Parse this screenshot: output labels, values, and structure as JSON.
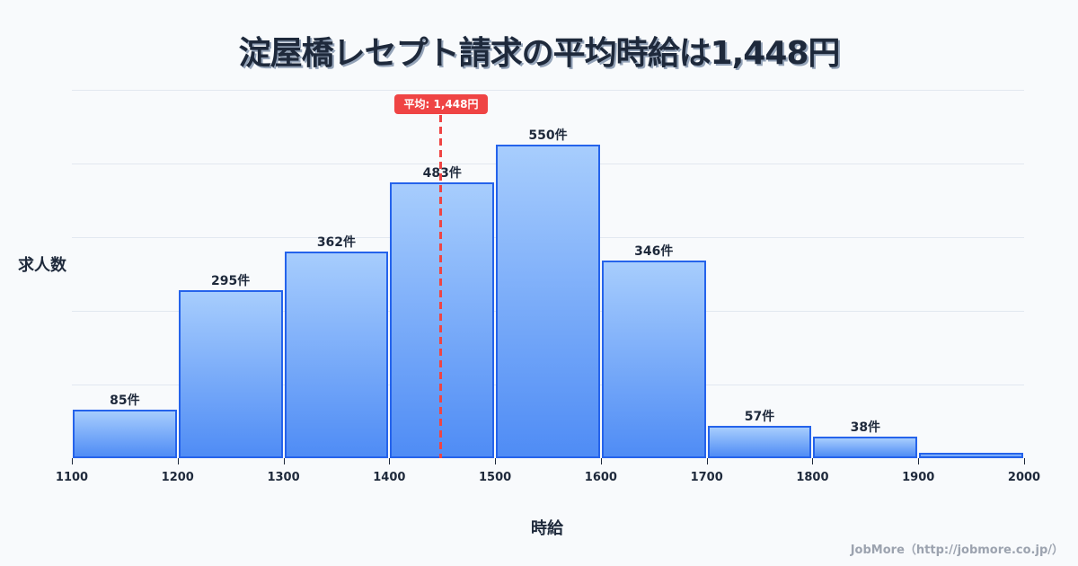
{
  "title": "淀屋橋レセプト請求の平均時給は1,448円",
  "ylabel": "求人数",
  "xlabel": "時給",
  "credit": "JobMore（http://jobmore.co.jp/）",
  "mean_badge": "平均: 1,448円",
  "colors": {
    "bar_border": "#2563eb",
    "bar_top": "#a7cdfd",
    "bar_bottom": "#4f8cf5",
    "mean_line": "#ef4444",
    "text": "#1e293b",
    "grid": "#e2e8f0",
    "background": "#f8fafc"
  },
  "chart_data": {
    "type": "bar",
    "title": "淀屋橋レセプト請求の平均時給は1,448円",
    "xlabel": "時給",
    "ylabel": "求人数",
    "bins": [
      {
        "from": 1100,
        "to": 1200,
        "value": 85,
        "label": "85件"
      },
      {
        "from": 1200,
        "to": 1300,
        "value": 295,
        "label": "295件"
      },
      {
        "from": 1300,
        "to": 1400,
        "value": 362,
        "label": "362件"
      },
      {
        "from": 1400,
        "to": 1500,
        "value": 483,
        "label": "483件"
      },
      {
        "from": 1500,
        "to": 1600,
        "value": 550,
        "label": "550件"
      },
      {
        "from": 1600,
        "to": 1700,
        "value": 346,
        "label": "346件"
      },
      {
        "from": 1700,
        "to": 1800,
        "value": 57,
        "label": "57件"
      },
      {
        "from": 1800,
        "to": 1900,
        "value": 38,
        "label": "38件"
      },
      {
        "from": 1900,
        "to": 2000,
        "value": 10,
        "label": ""
      }
    ],
    "categories": [
      "1100-1200",
      "1200-1300",
      "1300-1400",
      "1400-1500",
      "1500-1600",
      "1600-1700",
      "1700-1800",
      "1800-1900",
      "1900-2000"
    ],
    "values": [
      85,
      295,
      362,
      483,
      550,
      346,
      57,
      38,
      10
    ],
    "x_ticks": [
      "1100",
      "1200",
      "1300",
      "1400",
      "1500",
      "1600",
      "1700",
      "1800",
      "1900",
      "2000"
    ],
    "mean": 1448,
    "mean_label": "平均: 1,448円",
    "xlim": [
      1100,
      2000
    ],
    "ylim": [
      0,
      646
    ],
    "grid": true,
    "legend": "none"
  }
}
